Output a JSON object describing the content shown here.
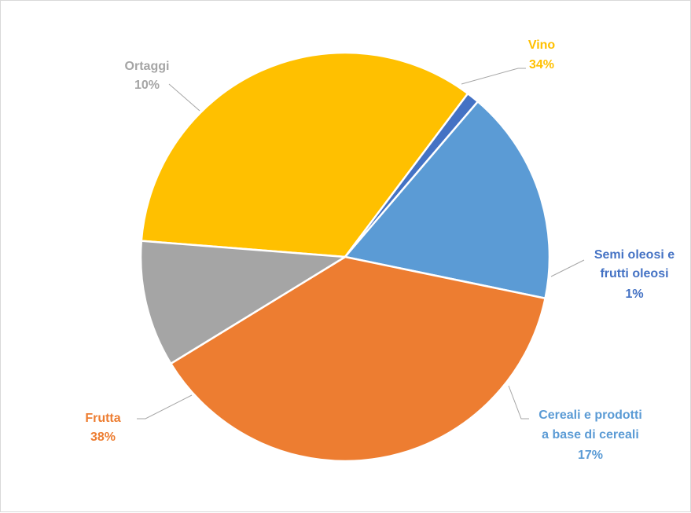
{
  "chart_data": {
    "type": "pie",
    "title": "",
    "slices": [
      {
        "name": "Vino",
        "value": 34,
        "label_lines": [
          "Vino",
          "34%"
        ],
        "color": "#FFC000"
      },
      {
        "name": "Semi oleosi e frutti oleosi",
        "value": 1,
        "label_lines": [
          "Semi oleosi e",
          "frutti oleosi",
          "1%"
        ],
        "color": "#4472C4"
      },
      {
        "name": "Cereali e prodotti a base di cereali",
        "value": 17,
        "label_lines": [
          "Cereali e prodotti",
          "a base di cereali",
          "17%"
        ],
        "color": "#5B9BD5"
      },
      {
        "name": "Frutta",
        "value": 38,
        "label_lines": [
          "Frutta",
          "38%"
        ],
        "color": "#ED7D31"
      },
      {
        "name": "Ortaggi",
        "value": 10,
        "label_lines": [
          "Ortaggi",
          "10%"
        ],
        "color": "#A5A5A5"
      }
    ],
    "legend": "none",
    "data_labels": "outside with leader lines"
  }
}
